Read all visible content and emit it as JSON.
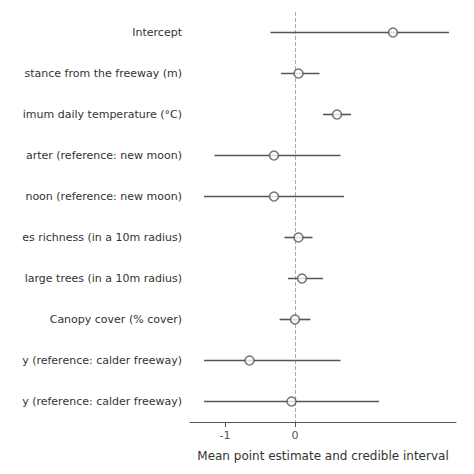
{
  "chart_data": {
    "type": "forest",
    "xlabel": "Mean point estimate and credible interval",
    "categories": [
      "Intercept",
      "stance from the freeway (m)",
      "imum daily temperature (°C)",
      "arter (reference: new moon)",
      "noon (reference: new moon)",
      "es richness (in a 10m radius)",
      "large trees (in a 10m radius)",
      "Canopy cover (% cover)",
      "y (reference: calder freeway)",
      "y (reference: calder freeway)"
    ],
    "values": [
      1.4,
      0.05,
      0.6,
      -0.3,
      -0.3,
      0.05,
      0.1,
      0.0,
      -0.65,
      -0.05
    ],
    "ci_low": [
      -0.35,
      -0.2,
      0.4,
      -1.15,
      -1.3,
      -0.15,
      -0.1,
      -0.22,
      -1.3,
      -1.3
    ],
    "ci_high": [
      2.2,
      0.35,
      0.8,
      0.65,
      0.7,
      0.25,
      0.4,
      0.22,
      0.65,
      1.2
    ],
    "xlim": [
      -1.5,
      2.3
    ],
    "xticks": [
      -1,
      0
    ],
    "reference_x": 0,
    "color": "#555555",
    "marker": "circle",
    "grid": false
  }
}
